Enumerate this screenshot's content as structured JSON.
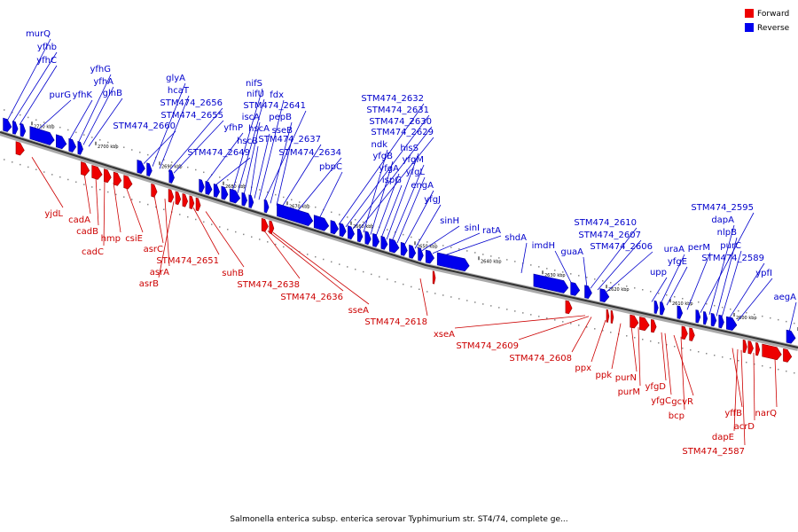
{
  "legend": {
    "forward": "Forward",
    "reverse": "Reverse",
    "forward_color": "#ee0000",
    "reverse_color": "#0000ee"
  },
  "title": "Salmonella enterica subsp. enterica serovar Typhimurium str. ST4/74, complete ge...",
  "scale": {
    "direction": "decreasing left to right",
    "ticks": [
      "2710 kbp",
      "2700 kbp",
      "2690 kbp",
      "2680 kbp",
      "2670 kbp",
      "2660 kbp",
      "2650 kbp",
      "2640 kbp",
      "2630 kbp",
      "2620 kbp",
      "2610 kbp",
      "2600 kbp",
      "2590 kbp"
    ]
  },
  "reverse_genes": [
    "murQ",
    "yfhb",
    "yfhC",
    "purG",
    "yfhK",
    "yfhG",
    "yfhA",
    "glnB",
    "STM474_2660",
    "glyA",
    "hcaT",
    "STM474_2656",
    "STM474_2655",
    "yfhP",
    "STM474_2649",
    "nifS",
    "nifU",
    "iscA",
    "hscB",
    "hscA",
    "fdx",
    "STM474_2641",
    "pepB",
    "sseB",
    "STM474_2637",
    "STM474_2634",
    "pbpC",
    "STM474_2632",
    "STM474_2631",
    "STM474_2630",
    "STM474_2629",
    "ndk",
    "yfgB",
    "yfgA",
    "ispG",
    "hisS",
    "yfgM",
    "yfgL",
    "engA",
    "yfgJ",
    "sinH",
    "sinI",
    "ratA",
    "shdA",
    "imdH",
    "guaA",
    "STM474_2610",
    "STM474_2607",
    "STM474_2606",
    "upp",
    "uraA",
    "yfgE",
    "perM",
    "STM474_2595",
    "dapA",
    "nlpB",
    "purC",
    "STM474_2589",
    "ypfI",
    "aegA"
  ],
  "forward_genes": [
    "yjdL",
    "cadA",
    "cadB",
    "cadC",
    "hmp",
    "csiE",
    "asrC",
    "asrA",
    "asrB",
    "STM474_2651",
    "suhB",
    "STM474_2638",
    "STM474_2636",
    "sseA",
    "STM474_2618",
    "xseA",
    "STM474_2609",
    "STM474_2608",
    "ppx",
    "ppk",
    "purN",
    "purM",
    "yfgD",
    "yfgC",
    "gcvR",
    "bcp",
    "yffB",
    "dapE",
    "STM474_2587",
    "acrD",
    "narQ"
  ]
}
